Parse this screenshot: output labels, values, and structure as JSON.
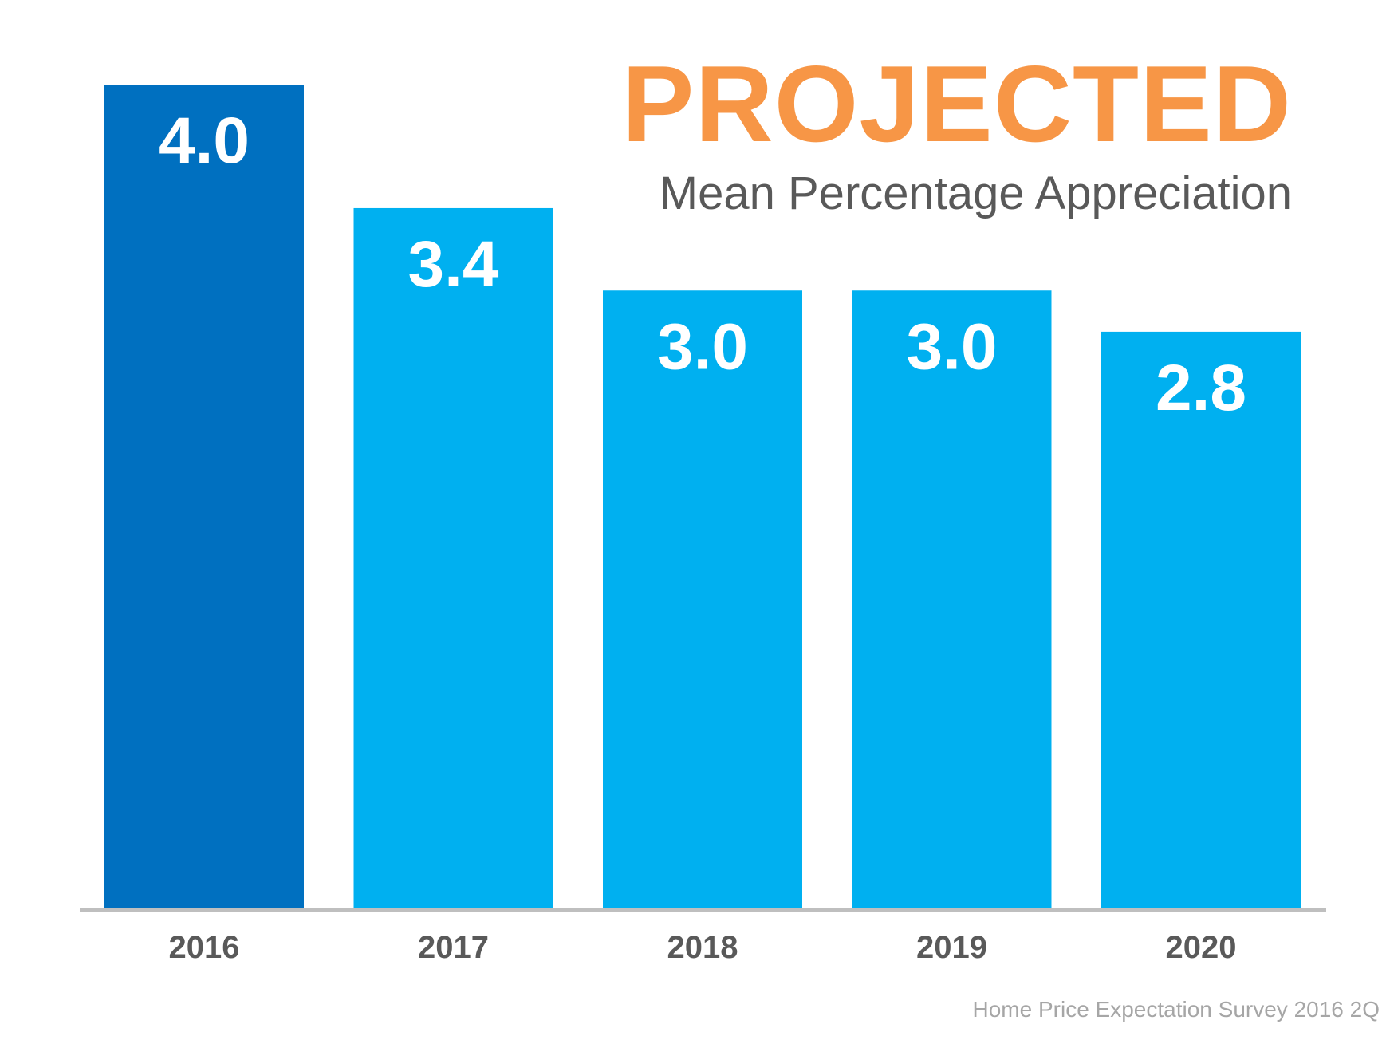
{
  "chart_data": {
    "type": "bar",
    "title": "PROJECTED",
    "subtitle": "Mean Percentage Appreciation",
    "categories": [
      "2016",
      "2017",
      "2018",
      "2019",
      "2020"
    ],
    "values": [
      4.0,
      3.4,
      3.0,
      3.0,
      2.8
    ],
    "value_labels": [
      "4.0",
      "3.4",
      "3.0",
      "3.0",
      "2.8"
    ],
    "xlabel": "",
    "ylabel": "",
    "ylim": [
      0,
      4.0
    ],
    "grid": false,
    "legend": "none",
    "source": "Home Price Expectation Survey 2016 2Q"
  },
  "colors": {
    "highlight_bar": "#0070C0",
    "bar": "#00B0F0",
    "title": "#F79646",
    "subtitle": "#595959",
    "category_label": "#595959",
    "value_label": "#FFFFFF",
    "baseline": "#BFBFBF",
    "source": "#A6A6A6"
  }
}
